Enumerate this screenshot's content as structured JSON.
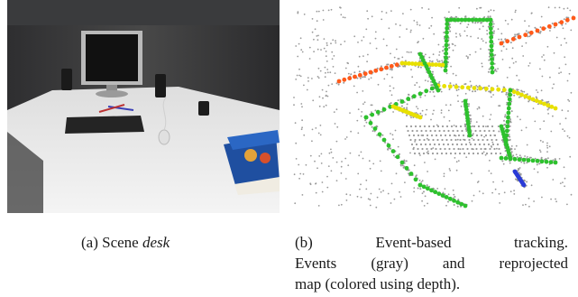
{
  "figure": {
    "panel_a": {
      "label": "(a)",
      "caption_prefix": "Scene",
      "caption_emph": "desk"
    },
    "panel_b": {
      "label": "(b)",
      "caption_lines": [
        "Event-based tracking.",
        "Events (gray) and reprojected",
        "map (colored using depth)."
      ]
    }
  },
  "colors": {
    "events": "#9a9a9a",
    "depth_near": "#ff5a1a",
    "depth_mid": "#e8e000",
    "depth_green": "#2ec12e",
    "depth_far": "#2a3bd6"
  }
}
